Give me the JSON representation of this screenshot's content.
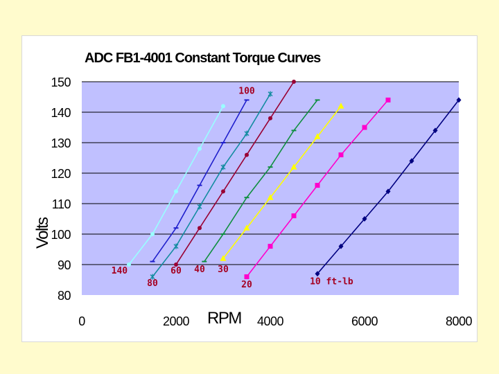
{
  "chart_data": {
    "type": "line",
    "title": "ADC FB1-4001 Constant Torque Curves",
    "xlabel": "RPM",
    "ylabel": "Volts",
    "xlim": [
      0,
      8000
    ],
    "ylim": [
      80,
      150
    ],
    "xticks": [
      0,
      2000,
      4000,
      6000,
      8000
    ],
    "yticks": [
      80,
      90,
      100,
      110,
      120,
      130,
      140,
      150
    ],
    "xtick_labels": [
      "0",
      "2000",
      "4000",
      "6000",
      "8000"
    ],
    "ytick_labels": [
      "80",
      "90",
      "100",
      "110",
      "120",
      "130",
      "140",
      "150"
    ],
    "grid": "horizontal",
    "plot_background": "#c0c0ff",
    "legend": "none",
    "series": [
      {
        "color": "#99ffff",
        "marker": "circle",
        "x": [
          1000,
          1500,
          2000,
          2500,
          3000
        ],
        "y": [
          90,
          100,
          114,
          128,
          142
        ]
      },
      {
        "color": "#1f1fcc",
        "marker": "dash",
        "x": [
          1500,
          2000,
          2500,
          3000,
          3500
        ],
        "y": [
          91,
          102,
          116,
          130,
          144
        ]
      },
      {
        "color": "#138ca0",
        "marker": "star",
        "x": [
          1500,
          2000,
          2500,
          3000,
          3500,
          4000
        ],
        "y": [
          86,
          96,
          109,
          122,
          133,
          146
        ]
      },
      {
        "color": "#990033",
        "marker": "circle",
        "x": [
          2000,
          2500,
          3000,
          3500,
          4000,
          4500
        ],
        "y": [
          90,
          102,
          114,
          126,
          138,
          150
        ]
      },
      {
        "color": "#0f8f40",
        "marker": "dash",
        "x": [
          2600,
          3000,
          3500,
          4000,
          4500,
          5000
        ],
        "y": [
          91,
          100,
          112,
          122,
          134,
          144
        ]
      },
      {
        "color": "#ffff00",
        "marker": "triangle",
        "x": [
          3000,
          3500,
          4000,
          4500,
          5000,
          5500
        ],
        "y": [
          92,
          102,
          112,
          122,
          132,
          142
        ]
      },
      {
        "color": "#ff00cc",
        "marker": "square",
        "x": [
          3500,
          4000,
          4500,
          5000,
          5500,
          6000,
          6500
        ],
        "y": [
          86,
          96,
          106,
          116,
          126,
          135,
          144
        ]
      },
      {
        "color": "#000080",
        "marker": "diamond",
        "x": [
          5000,
          5500,
          6000,
          6500,
          7000,
          7500,
          8000
        ],
        "y": [
          87,
          96,
          105,
          114,
          124,
          134,
          144
        ]
      }
    ],
    "annotations": [
      {
        "text": "100",
        "x": 3500,
        "y": 146
      },
      {
        "text": "140",
        "x": 800,
        "y": 87
      },
      {
        "text": "80",
        "x": 1500,
        "y": 83
      },
      {
        "text": "60",
        "x": 2000,
        "y": 87
      },
      {
        "text": "40",
        "x": 2500,
        "y": 87.5
      },
      {
        "text": "30",
        "x": 3000,
        "y": 87.5
      },
      {
        "text": "20",
        "x": 3500,
        "y": 82.5
      },
      {
        "text": "10 ft-lb",
        "x": 5300,
        "y": 83.5
      }
    ]
  }
}
